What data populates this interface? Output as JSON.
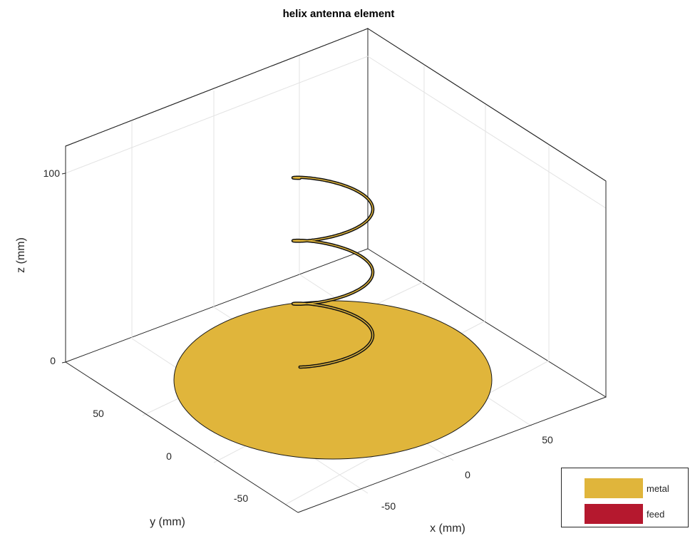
{
  "chart_data": {
    "type": "3d-surface",
    "title": "helix antenna element",
    "xlabel": "x (mm)",
    "ylabel": "y (mm)",
    "zlabel": "z (mm)",
    "xticks": [
      "-50",
      "0",
      "50"
    ],
    "yticks": [
      "50",
      "0",
      "-50"
    ],
    "zticks": [
      "100",
      "0"
    ],
    "xlim": [
      -75,
      75
    ],
    "ylim": [
      -75,
      75
    ],
    "zlim": [
      0,
      110
    ],
    "grid": true,
    "legend_position": "bottom-right",
    "legend": [
      {
        "name": "metal",
        "color": "#E0B53B"
      },
      {
        "name": "feed",
        "color": "#B5182E"
      }
    ],
    "ground_plane": {
      "shape": "disc",
      "radius": 75,
      "z": 0,
      "color": "#E0B53B"
    },
    "helix": {
      "turns": 3,
      "radius": 22,
      "height": 100,
      "color": "#E0B53B"
    }
  }
}
